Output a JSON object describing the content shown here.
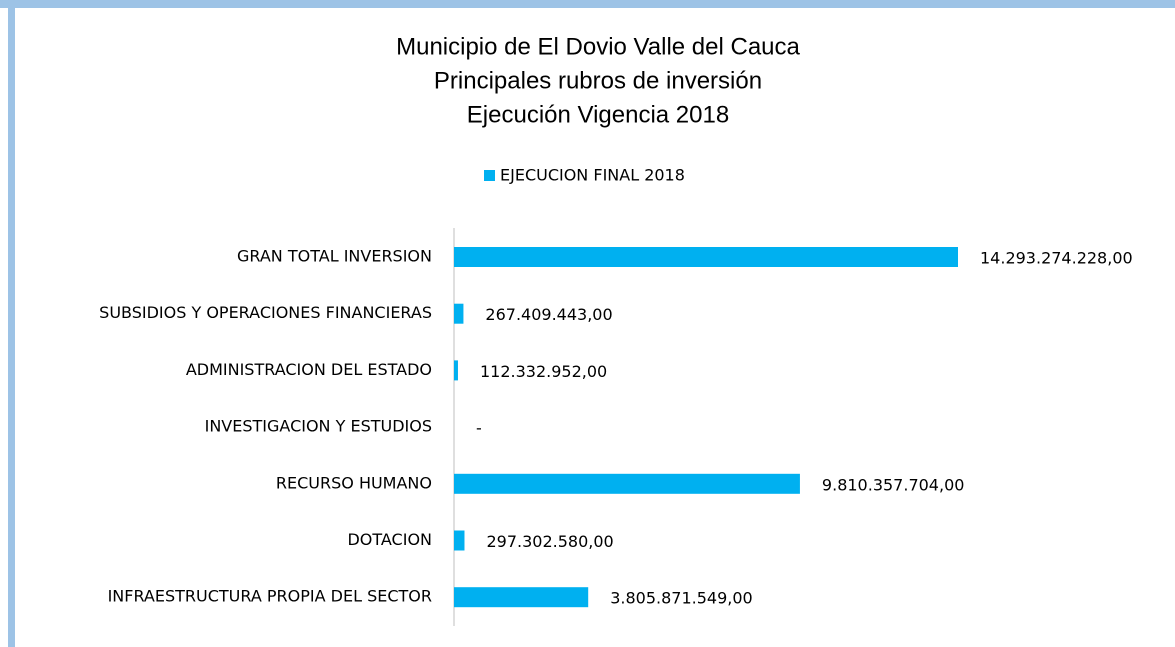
{
  "chart_data": {
    "type": "barh",
    "title": [
      "Municipio de El Dovio Valle del Cauca",
      "Principales rubros de inversión",
      "Ejecución Vigencia 2018"
    ],
    "categories": [
      "GRAN TOTAL INVERSION",
      "SUBSIDIOS Y OPERACIONES FINANCIERAS",
      "ADMINISTRACION DEL ESTADO",
      "INVESTIGACION Y ESTUDIOS",
      "RECURSO HUMANO",
      "DOTACION",
      "INFRAESTRUCTURA PROPIA DEL SECTOR"
    ],
    "series": [
      {
        "name": "EJECUCION FINAL 2018",
        "color": "#00b0f0",
        "values": [
          14293274228,
          267409443,
          112332952,
          0,
          9810357704,
          297302580,
          3805871549
        ],
        "value_labels": [
          "14.293.274.228,00",
          "267.409.443,00",
          "112.332.952,00",
          "-",
          "9.810.357.704,00",
          "297.302.580,00",
          "3.805.871.549,00"
        ]
      }
    ],
    "legend": "top"
  }
}
